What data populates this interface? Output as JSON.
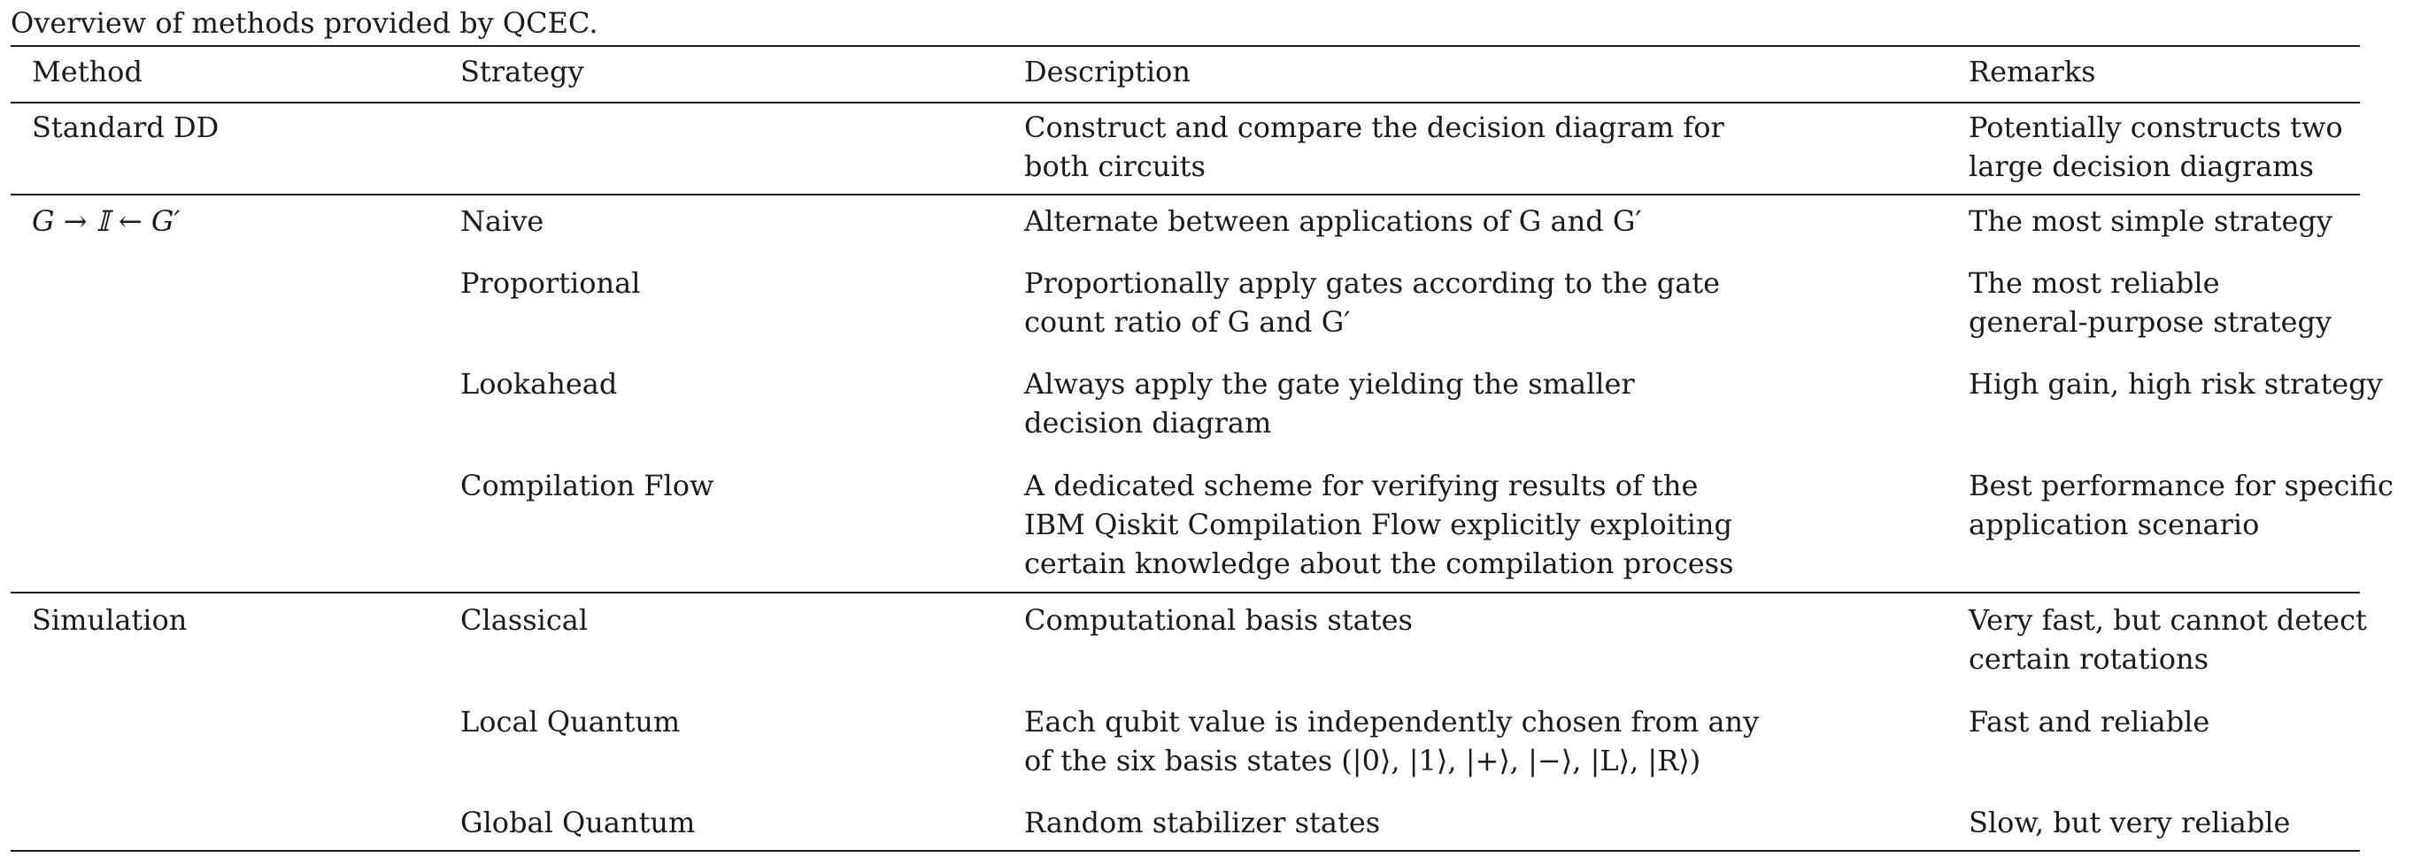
{
  "caption": "Overview of methods provided by QCEC.",
  "headers": {
    "method": "Method",
    "strategy": "Strategy",
    "description": "Description",
    "remarks": "Remarks"
  },
  "rows": [
    {
      "method": "Standard DD",
      "strategy": "",
      "description": [
        "Construct and compare the decision diagram for",
        "both circuits"
      ],
      "remarks": [
        "Potentially constructs two",
        "large decision diagrams"
      ]
    },
    {
      "method": "G → 𝕀 ← G′",
      "strategy": "Naive",
      "description": [
        "Alternate between applications of G and G′"
      ],
      "remarks": [
        "The most simple strategy"
      ]
    },
    {
      "method": "",
      "strategy": "Proportional",
      "description": [
        "Proportionally apply gates according to the gate",
        "count ratio of G and G′"
      ],
      "remarks": [
        "The most reliable",
        "general-purpose strategy"
      ]
    },
    {
      "method": "",
      "strategy": "Lookahead",
      "description": [
        "Always apply the gate yielding the smaller",
        "decision diagram"
      ],
      "remarks": [
        "High gain, high risk strategy"
      ]
    },
    {
      "method": "",
      "strategy": "Compilation Flow",
      "description": [
        "A dedicated scheme for verifying results of the",
        "IBM Qiskit Compilation Flow explicitly exploiting",
        "certain knowledge about the compilation process"
      ],
      "remarks": [
        "Best performance for specific",
        "application scenario"
      ]
    },
    {
      "method": "Simulation",
      "strategy": "Classical",
      "description": [
        "Computational basis states"
      ],
      "remarks": [
        "Very fast, but cannot detect",
        "certain rotations"
      ]
    },
    {
      "method": "",
      "strategy": "Local Quantum",
      "description": [
        "Each qubit value is independently chosen from any",
        "of the six basis states (|0⟩, |1⟩, |+⟩, |−⟩, |L⟩, |R⟩)"
      ],
      "remarks": [
        "Fast and reliable"
      ]
    },
    {
      "method": "",
      "strategy": "Global Quantum",
      "description": [
        "Random stabilizer states"
      ],
      "remarks": [
        "Slow, but very reliable"
      ]
    }
  ]
}
